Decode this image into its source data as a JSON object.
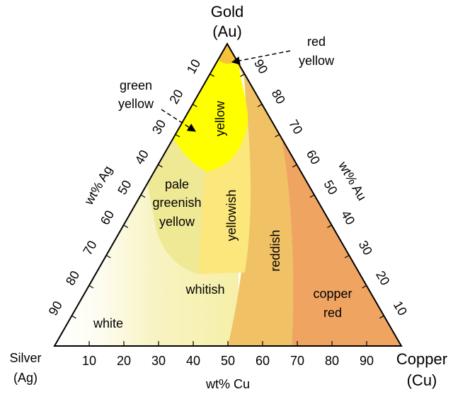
{
  "vertices": {
    "gold": {
      "name": "Gold",
      "symbol": "(Au)"
    },
    "silver": {
      "name": "Silver",
      "symbol": "(Ag)"
    },
    "copper": {
      "name": "Copper",
      "symbol": "(Cu)"
    }
  },
  "axes": {
    "bottom": {
      "label": "wt% Cu",
      "ticks": [
        10,
        20,
        30,
        40,
        50,
        60,
        70,
        80,
        90
      ]
    },
    "left": {
      "label": "wt% Ag",
      "ticks": [
        10,
        20,
        30,
        40,
        50,
        60,
        70,
        80,
        90
      ]
    },
    "right": {
      "label": "wt% Au",
      "ticks": [
        10,
        20,
        30,
        40,
        50,
        60,
        70,
        80,
        90
      ]
    }
  },
  "annotations": [
    {
      "lines": [
        "red",
        "yellow"
      ]
    },
    {
      "lines": [
        "green",
        "yellow"
      ]
    }
  ],
  "regions": [
    {
      "lines": [
        "yellow"
      ]
    },
    {
      "lines": [
        "pale",
        "greenish",
        "yellow"
      ]
    },
    {
      "lines": [
        "yellowish"
      ]
    },
    {
      "lines": [
        "reddish"
      ]
    },
    {
      "lines": [
        "whitish"
      ]
    },
    {
      "lines": [
        "copper",
        "red"
      ]
    },
    {
      "lines": [
        "white"
      ]
    }
  ]
}
